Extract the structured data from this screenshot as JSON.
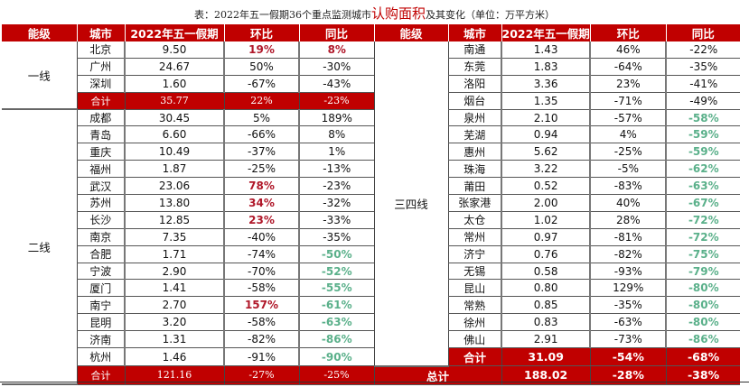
{
  "title": {
    "prefix": "表：2022年五一假期36个重点监测城市",
    "highlight": "认购面积",
    "suffix": "及其变化（单位：万平方米）"
  },
  "colors": {
    "header_bg": "#c00000",
    "positive": "#b0182a",
    "negative": "#5ab08a"
  },
  "headers": [
    "能级",
    "城市",
    "2022年五一假期",
    "环比",
    "同比",
    "能级",
    "城市",
    "2022年五一假期",
    "环比",
    "同比"
  ],
  "left": {
    "tier1": {
      "label": "一线",
      "rows": [
        {
          "city": "北京",
          "area": "9.50",
          "mom": "19%",
          "yoy": "8%",
          "mom_style": "red",
          "yoy_style": "red"
        },
        {
          "city": "广州",
          "area": "24.67",
          "mom": "50%",
          "yoy": "-30%",
          "mom_style": "",
          "yoy_style": ""
        },
        {
          "city": "深圳",
          "area": "1.60",
          "mom": "-67%",
          "yoy": "-43%",
          "mom_style": "",
          "yoy_style": ""
        }
      ],
      "subtotal": {
        "label": "合计",
        "area": "35.77",
        "mom": "22%",
        "yoy": "-23%"
      }
    },
    "tier2": {
      "label": "二线",
      "rows": [
        {
          "city": "成都",
          "area": "30.45",
          "mom": "5%",
          "yoy": "189%",
          "mom_style": "",
          "yoy_style": ""
        },
        {
          "city": "青岛",
          "area": "6.60",
          "mom": "-66%",
          "yoy": "8%",
          "mom_style": "",
          "yoy_style": ""
        },
        {
          "city": "重庆",
          "area": "10.49",
          "mom": "-37%",
          "yoy": "1%",
          "mom_style": "",
          "yoy_style": ""
        },
        {
          "city": "福州",
          "area": "1.87",
          "mom": "-25%",
          "yoy": "-13%",
          "mom_style": "",
          "yoy_style": ""
        },
        {
          "city": "武汉",
          "area": "23.06",
          "mom": "78%",
          "yoy": "-23%",
          "mom_style": "red",
          "yoy_style": ""
        },
        {
          "city": "苏州",
          "area": "13.80",
          "mom": "34%",
          "yoy": "-32%",
          "mom_style": "red",
          "yoy_style": ""
        },
        {
          "city": "长沙",
          "area": "12.85",
          "mom": "23%",
          "yoy": "-33%",
          "mom_style": "red",
          "yoy_style": ""
        },
        {
          "city": "南京",
          "area": "7.35",
          "mom": "-40%",
          "yoy": "-35%",
          "mom_style": "",
          "yoy_style": ""
        },
        {
          "city": "合肥",
          "area": "1.71",
          "mom": "-74%",
          "yoy": "-50%",
          "mom_style": "",
          "yoy_style": "green"
        },
        {
          "city": "宁波",
          "area": "2.90",
          "mom": "-70%",
          "yoy": "-52%",
          "mom_style": "",
          "yoy_style": "green"
        },
        {
          "city": "厦门",
          "area": "1.41",
          "mom": "-58%",
          "yoy": "-55%",
          "mom_style": "",
          "yoy_style": "green"
        },
        {
          "city": "南宁",
          "area": "2.70",
          "mom": "157%",
          "yoy": "-61%",
          "mom_style": "red",
          "yoy_style": "green"
        },
        {
          "city": "昆明",
          "area": "3.20",
          "mom": "-58%",
          "yoy": "-63%",
          "mom_style": "",
          "yoy_style": "green"
        },
        {
          "city": "济南",
          "area": "1.31",
          "mom": "-82%",
          "yoy": "-86%",
          "mom_style": "",
          "yoy_style": "green"
        },
        {
          "city": "杭州",
          "area": "1.46",
          "mom": "-91%",
          "yoy": "-90%",
          "mom_style": "",
          "yoy_style": "green"
        }
      ],
      "subtotal": {
        "label": "合计",
        "area": "121.16",
        "mom": "-27%",
        "yoy": "-25%"
      }
    }
  },
  "right": {
    "tier34": {
      "label": "三四线",
      "rows": [
        {
          "city": "南通",
          "area": "1.43",
          "mom": "46%",
          "yoy": "-22%",
          "yoy_style": ""
        },
        {
          "city": "东莞",
          "area": "1.83",
          "mom": "-64%",
          "yoy": "-35%",
          "yoy_style": ""
        },
        {
          "city": "洛阳",
          "area": "3.36",
          "mom": "23%",
          "yoy": "-41%",
          "yoy_style": ""
        },
        {
          "city": "烟台",
          "area": "1.35",
          "mom": "-71%",
          "yoy": "-49%",
          "yoy_style": ""
        },
        {
          "city": "泉州",
          "area": "2.10",
          "mom": "-57%",
          "yoy": "-58%",
          "yoy_style": "green"
        },
        {
          "city": "芜湖",
          "area": "0.94",
          "mom": "4%",
          "yoy": "-59%",
          "yoy_style": "green"
        },
        {
          "city": "惠州",
          "area": "5.62",
          "mom": "-25%",
          "yoy": "-59%",
          "yoy_style": "green"
        },
        {
          "city": "珠海",
          "area": "3.22",
          "mom": "-5%",
          "yoy": "-62%",
          "yoy_style": "green"
        },
        {
          "city": "莆田",
          "area": "0.52",
          "mom": "-83%",
          "yoy": "-63%",
          "yoy_style": "green"
        },
        {
          "city": "张家港",
          "area": "2.00",
          "mom": "40%",
          "yoy": "-67%",
          "yoy_style": "green"
        },
        {
          "city": "太仓",
          "area": "1.02",
          "mom": "28%",
          "yoy": "-72%",
          "yoy_style": "green"
        },
        {
          "city": "常州",
          "area": "0.97",
          "mom": "-81%",
          "yoy": "-72%",
          "yoy_style": "green"
        },
        {
          "city": "济宁",
          "area": "0.76",
          "mom": "-82%",
          "yoy": "-75%",
          "yoy_style": "green"
        },
        {
          "city": "无锡",
          "area": "0.58",
          "mom": "-93%",
          "yoy": "-79%",
          "yoy_style": "green"
        },
        {
          "city": "昆山",
          "area": "0.80",
          "mom": "129%",
          "yoy": "-80%",
          "yoy_style": "green"
        },
        {
          "city": "常熟",
          "area": "0.85",
          "mom": "-35%",
          "yoy": "-80%",
          "yoy_style": "green"
        },
        {
          "city": "徐州",
          "area": "0.83",
          "mom": "-63%",
          "yoy": "-80%",
          "yoy_style": "green"
        },
        {
          "city": "佛山",
          "area": "2.91",
          "mom": "-73%",
          "yoy": "-86%",
          "yoy_style": "green"
        }
      ],
      "subtotal": {
        "label": "合计",
        "area": "31.09",
        "mom": "-54%",
        "yoy": "-68%"
      }
    },
    "total": {
      "label": "总计",
      "area": "188.02",
      "mom": "-28%",
      "yoy": "-38%"
    }
  }
}
